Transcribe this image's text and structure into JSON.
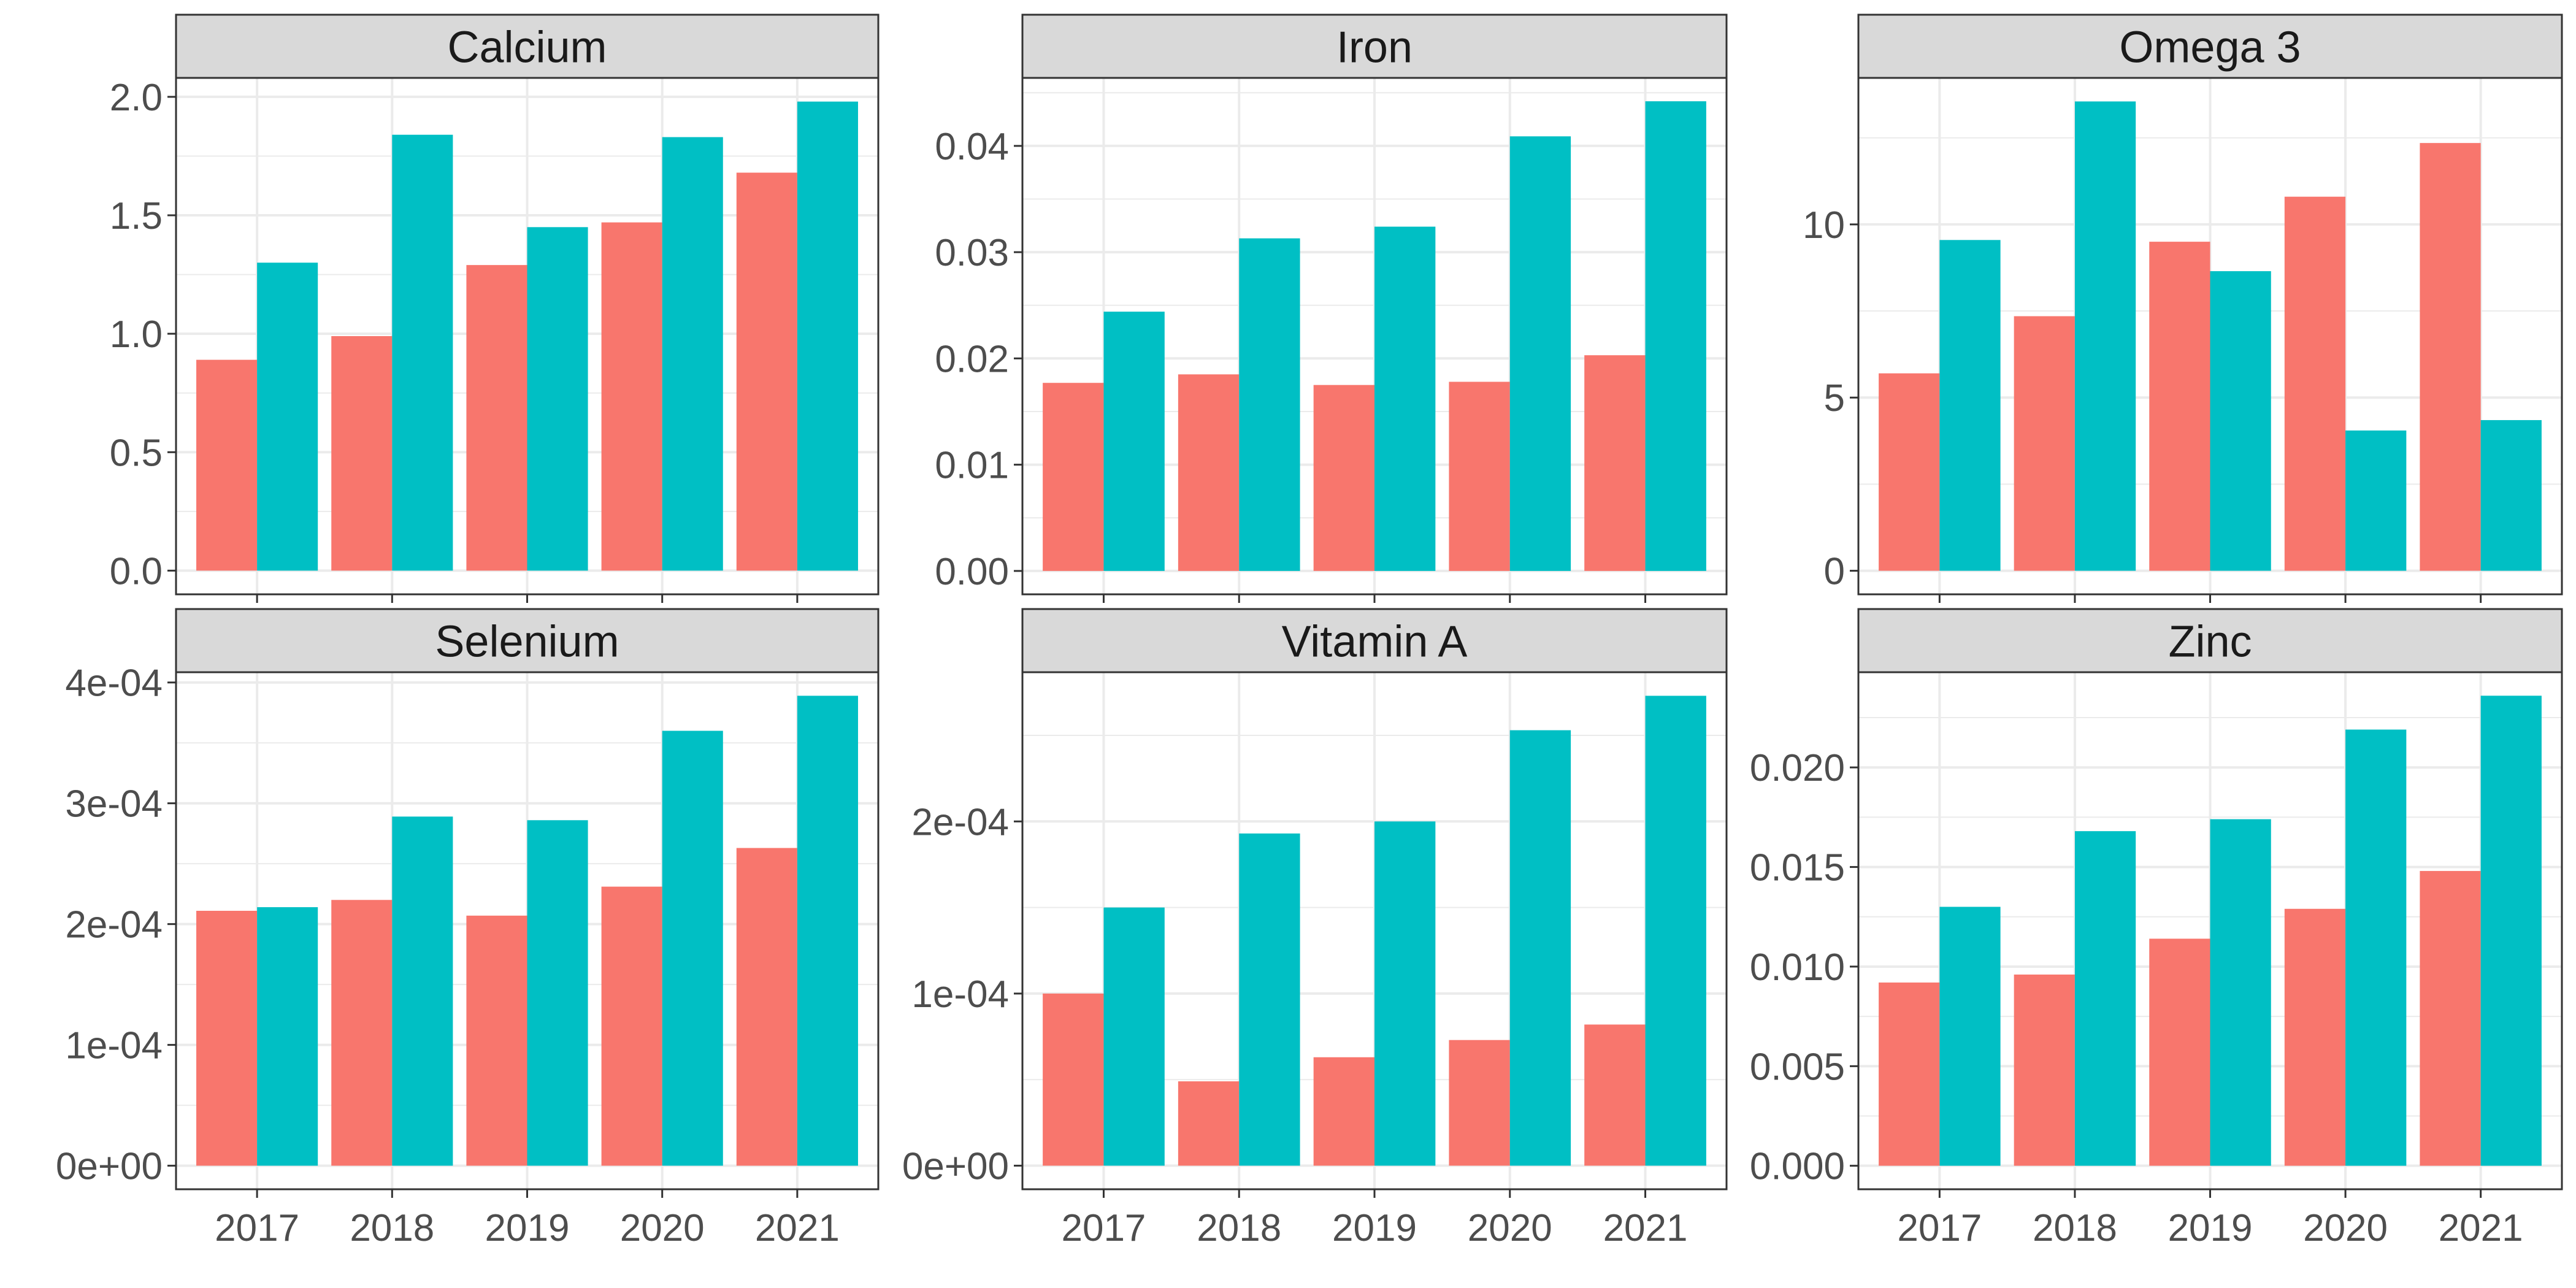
{
  "chart_data": [
    {
      "type": "bar",
      "title": "Calcium",
      "categories": [
        "2017",
        "2018",
        "2019",
        "2020",
        "2021"
      ],
      "series": [
        {
          "color": "#F8766D",
          "values": [
            0.89,
            0.99,
            1.29,
            1.47,
            1.68
          ]
        },
        {
          "color": "#00BFC4",
          "values": [
            1.3,
            1.84,
            1.45,
            1.83,
            1.98
          ]
        }
      ],
      "ylim": [
        -0.1,
        2.08
      ],
      "yticks": [
        0,
        0.5,
        1,
        1.5,
        2
      ],
      "ytick_labels": [
        "0.0",
        "0.5",
        "1.0",
        "1.5",
        "2.0"
      ]
    },
    {
      "type": "bar",
      "title": "Iron",
      "categories": [
        "2017",
        "2018",
        "2019",
        "2020",
        "2021"
      ],
      "series": [
        {
          "color": "#F8766D",
          "values": [
            0.0177,
            0.0185,
            0.0175,
            0.0178,
            0.0203
          ]
        },
        {
          "color": "#00BFC4",
          "values": [
            0.0244,
            0.0313,
            0.0324,
            0.0409,
            0.0442
          ]
        }
      ],
      "ylim": [
        -0.0022,
        0.0464
      ],
      "yticks": [
        0,
        0.01,
        0.02,
        0.03,
        0.04
      ],
      "ytick_labels": [
        "0.00",
        "0.01",
        "0.02",
        "0.03",
        "0.04"
      ]
    },
    {
      "type": "bar",
      "title": "Omega 3",
      "categories": [
        "2017",
        "2018",
        "2019",
        "2020",
        "2021"
      ],
      "series": [
        {
          "color": "#F8766D",
          "values": [
            5.7,
            7.35,
            9.5,
            10.8,
            12.35
          ]
        },
        {
          "color": "#00BFC4",
          "values": [
            9.55,
            13.55,
            8.65,
            4.05,
            4.35
          ]
        }
      ],
      "ylim": [
        -0.68,
        14.23
      ],
      "yticks": [
        0,
        5,
        10
      ],
      "ytick_labels": [
        "0",
        "5",
        "10"
      ]
    },
    {
      "type": "bar",
      "title": "Selenium",
      "categories": [
        "2017",
        "2018",
        "2019",
        "2020",
        "2021"
      ],
      "series": [
        {
          "color": "#F8766D",
          "values": [
            0.000211,
            0.00022,
            0.000207,
            0.000231,
            0.000263
          ]
        },
        {
          "color": "#00BFC4",
          "values": [
            0.000214,
            0.000289,
            0.000286,
            0.00036,
            0.000389
          ]
        }
      ],
      "ylim": [
        -1.95e-05,
        0.0004085
      ],
      "yticks": [
        0,
        0.0001,
        0.0002,
        0.0003,
        0.0004
      ],
      "ytick_labels": [
        "0e+00",
        "1e-04",
        "2e-04",
        "3e-04",
        "4e-04"
      ]
    },
    {
      "type": "bar",
      "title": "Vitamin A",
      "categories": [
        "2017",
        "2018",
        "2019",
        "2020",
        "2021"
      ],
      "series": [
        {
          "color": "#F8766D",
          "values": [
            0.0001,
            4.9e-05,
            6.3e-05,
            7.3e-05,
            8.2e-05
          ]
        },
        {
          "color": "#00BFC4",
          "values": [
            0.00015,
            0.000193,
            0.0002,
            0.000253,
            0.000273
          ]
        }
      ],
      "ylim": [
        -1.37e-05,
        0.0002867
      ],
      "yticks": [
        0,
        0.0001,
        0.0002
      ],
      "ytick_labels": [
        "0e+00",
        "1e-04",
        "2e-04"
      ]
    },
    {
      "type": "bar",
      "title": "Zinc",
      "categories": [
        "2017",
        "2018",
        "2019",
        "2020",
        "2021"
      ],
      "series": [
        {
          "color": "#F8766D",
          "values": [
            0.0092,
            0.0096,
            0.0114,
            0.0129,
            0.0148
          ]
        },
        {
          "color": "#00BFC4",
          "values": [
            0.013,
            0.0168,
            0.0174,
            0.0219,
            0.0236
          ]
        }
      ],
      "ylim": [
        -0.00118,
        0.02478
      ],
      "yticks": [
        0,
        0.005,
        0.01,
        0.015,
        0.02
      ],
      "ytick_labels": [
        "0.000",
        "0.005",
        "0.010",
        "0.015",
        "0.020"
      ]
    }
  ]
}
